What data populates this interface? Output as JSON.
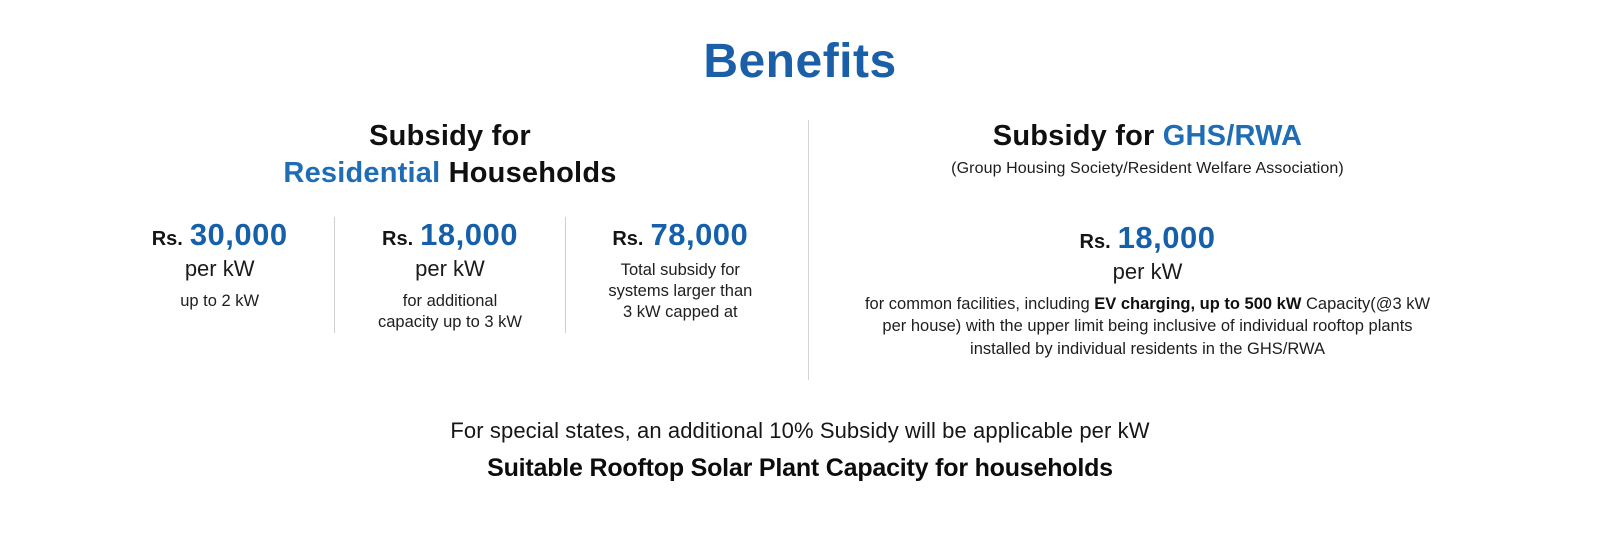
{
  "title": "Benefits",
  "colors": {
    "title_blue": "#1A5FA8",
    "accent_blue": "#1E6DB5",
    "number_blue": "#1560A9",
    "text_dark": "#111111",
    "divider_gray": "#d4d4d4",
    "background": "#ffffff"
  },
  "left_section": {
    "heading_line1": "Subsidy for",
    "heading_accent": "Residential",
    "heading_rest": " Households",
    "columns": [
      {
        "currency": "Rs.",
        "amount": "30,000",
        "per": "per kW",
        "desc": "up to 2 kW"
      },
      {
        "currency": "Rs.",
        "amount": "18,000",
        "per": "per kW",
        "desc": "for additional\ncapacity up to 3 kW"
      },
      {
        "currency": "Rs.",
        "amount": "78,000",
        "desc": "Total subsidy for\nsystems larger than\n3 kW capped at"
      }
    ]
  },
  "right_section": {
    "heading_prefix": "Subsidy for ",
    "heading_accent": "GHS/RWA",
    "subtitle": "(Group Housing Society/Resident Welfare Association)",
    "currency": "Rs.",
    "amount": "18,000",
    "per": "per kW",
    "desc_prefix": "for common facilities, including ",
    "desc_bold": "EV charging, up to 500 kW",
    "desc_suffix": " Capacity(@3 kW per house) with the upper limit being inclusive of individual rooftop plants installed by individual residents in the GHS/RWA"
  },
  "footer": {
    "note": "For special states, an additional 10% Subsidy will be applicable per kW",
    "subheading": "Suitable Rooftop Solar Plant Capacity for households"
  }
}
